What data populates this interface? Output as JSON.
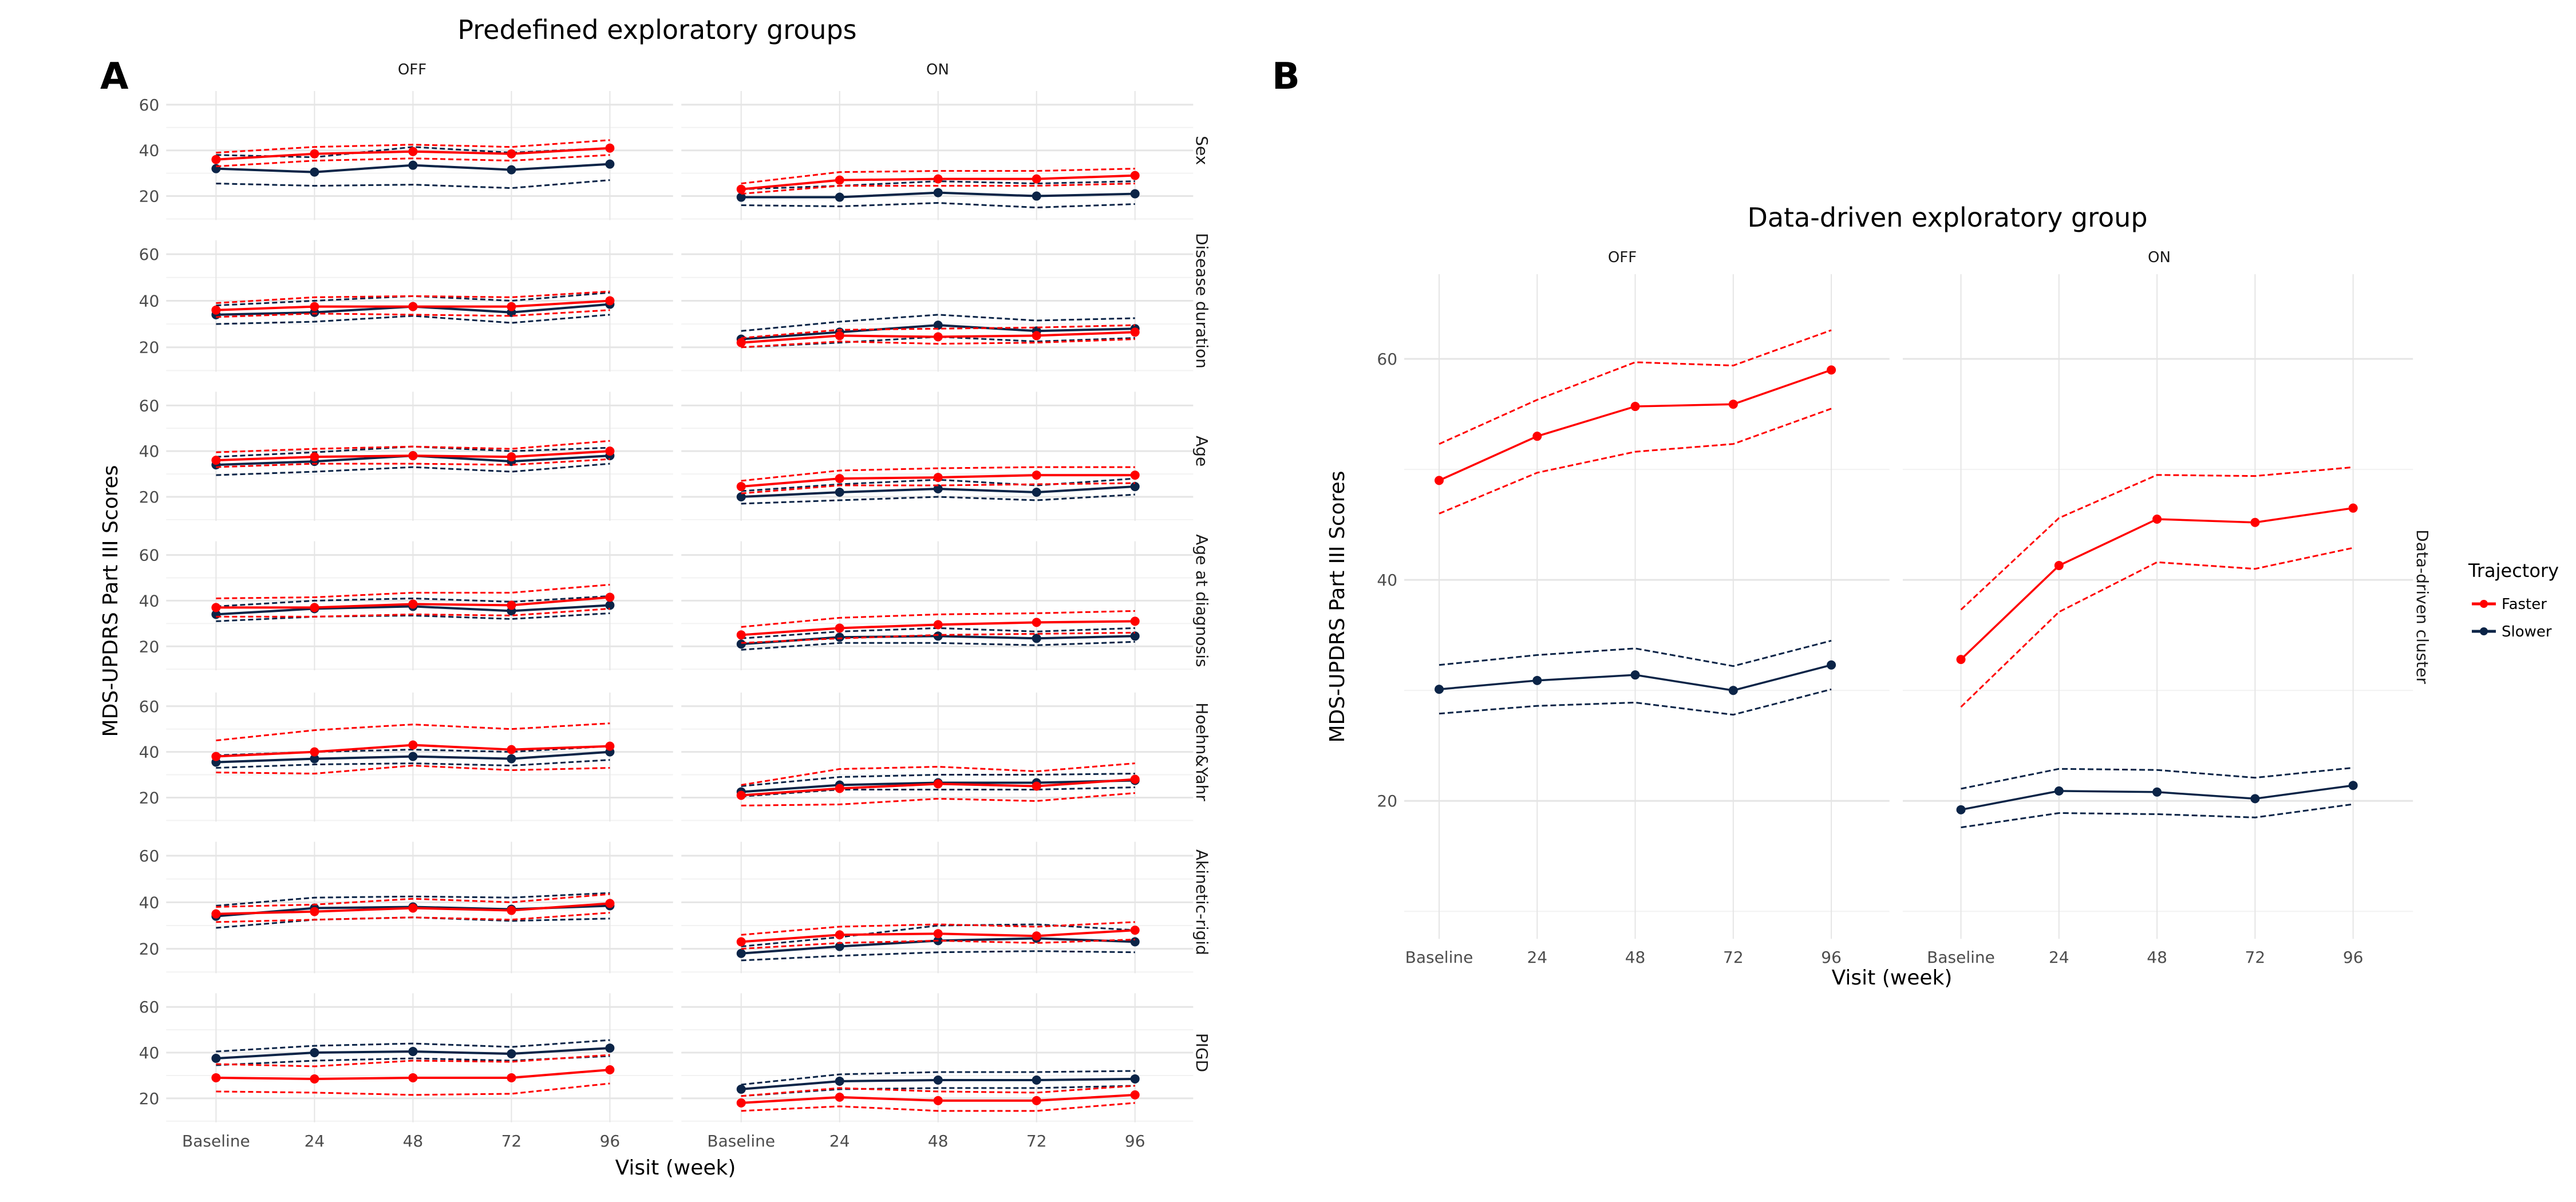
{
  "colors": {
    "faster": "#ff0000",
    "slower": "#0b2447",
    "grid_major": "#e5e5e5",
    "grid_minor": "#f2f2f2"
  },
  "panel_a": {
    "letter": "A",
    "title": "Predefined exploratory groups"
  },
  "panel_b": {
    "letter": "B",
    "title": "Data-driven exploratory group"
  },
  "legend": {
    "title": "Trajectory",
    "items": [
      {
        "label": "Faster",
        "key": "faster"
      },
      {
        "label": "Slower",
        "key": "slower"
      }
    ]
  },
  "chart_data": [
    {
      "type": "line",
      "id": "A",
      "title": "Predefined exploratory groups",
      "xlabel": "Visit (week)",
      "ylabel": "MDS-UPDRS Part III Scores",
      "x": [
        "Baseline",
        "24",
        "48",
        "72",
        "96"
      ],
      "yticks": [
        20,
        40,
        60
      ],
      "ylim": [
        7,
        66
      ],
      "columns": [
        "OFF",
        "ON"
      ],
      "rows": [
        {
          "label": "Sex",
          "OFF": {
            "faster": {
              "mean": [
                36,
                38.5,
                39.5,
                38.5,
                41
              ],
              "lower": [
                33,
                35.5,
                36.5,
                35.5,
                38
              ],
              "upper": [
                39,
                41.5,
                42.5,
                41.5,
                44.5
              ]
            },
            "slower": {
              "mean": [
                32,
                30.5,
                33.5,
                31.5,
                34
              ],
              "lower": [
                25.5,
                24.5,
                25,
                23.5,
                27
              ],
              "upper": [
                38,
                37,
                41.5,
                39,
                41
              ]
            }
          },
          "ON": {
            "faster": {
              "mean": [
                23,
                27,
                27.5,
                27.5,
                29
              ],
              "lower": [
                21,
                24.5,
                24.5,
                24.5,
                25.5
              ],
              "upper": [
                25.5,
                30.5,
                31,
                31,
                32
              ]
            },
            "slower": {
              "mean": [
                19.5,
                19.5,
                21.5,
                20,
                21
              ],
              "lower": [
                16,
                15.5,
                17,
                15,
                16.5
              ],
              "upper": [
                23,
                24.5,
                26.5,
                25.5,
                26.5
              ]
            }
          }
        },
        {
          "label": "Disease duration",
          "OFF": {
            "faster": {
              "mean": [
                36,
                37.5,
                37.5,
                37.5,
                40
              ],
              "lower": [
                33,
                34.5,
                34,
                33.5,
                36
              ],
              "upper": [
                39,
                41.5,
                42,
                41.5,
                44
              ]
            },
            "slower": {
              "mean": [
                34,
                35,
                37.5,
                35,
                38.5
              ],
              "lower": [
                30,
                31,
                33.5,
                30.5,
                34
              ],
              "upper": [
                38,
                40,
                42,
                40,
                43.5
              ]
            }
          },
          "ON": {
            "faster": {
              "mean": [
                22,
                25,
                24.5,
                25,
                26.5
              ],
              "lower": [
                20,
                22.5,
                21.5,
                22,
                23.5
              ],
              "upper": [
                24,
                27.5,
                28,
                28.5,
                29.5
              ]
            },
            "slower": {
              "mean": [
                23.5,
                26.5,
                29.5,
                27,
                28
              ],
              "lower": [
                20,
                22,
                24.5,
                22.5,
                24
              ],
              "upper": [
                27,
                31,
                34,
                31.5,
                32.5
              ]
            }
          }
        },
        {
          "label": "Age",
          "OFF": {
            "faster": {
              "mean": [
                36,
                37.5,
                38,
                37.5,
                40
              ],
              "lower": [
                33,
                34.5,
                34.5,
                34,
                36.5
              ],
              "upper": [
                39.5,
                41,
                42,
                41,
                44.5
              ]
            },
            "slower": {
              "mean": [
                34,
                35.5,
                38,
                35.5,
                38
              ],
              "lower": [
                29.5,
                31,
                33,
                31,
                34.5
              ],
              "upper": [
                37.5,
                39.5,
                42,
                40,
                41.5
              ]
            }
          },
          "ON": {
            "faster": {
              "mean": [
                24.5,
                28,
                28.5,
                29.5,
                29.5
              ],
              "lower": [
                21.5,
                25,
                25,
                25.5,
                26
              ],
              "upper": [
                27,
                31.5,
                32.5,
                33,
                33
              ]
            },
            "slower": {
              "mean": [
                20,
                22,
                23.5,
                22,
                24.5
              ],
              "lower": [
                17,
                18.5,
                20,
                18.5,
                21
              ],
              "upper": [
                22.5,
                25.5,
                27.5,
                25,
                28
              ]
            }
          }
        },
        {
          "label": "Age at diagnosis",
          "OFF": {
            "faster": {
              "mean": [
                37,
                37,
                38.5,
                38,
                41.5
              ],
              "lower": [
                33,
                33,
                34,
                33.5,
                36.5
              ],
              "upper": [
                41,
                41.5,
                43.5,
                43.5,
                47
              ]
            },
            "slower": {
              "mean": [
                34,
                36.5,
                37.5,
                35.5,
                38
              ],
              "lower": [
                31,
                33,
                33.5,
                32,
                34.5
              ],
              "upper": [
                37.5,
                40,
                41,
                39.5,
                42
              ]
            }
          },
          "ON": {
            "faster": {
              "mean": [
                25,
                28,
                29.5,
                30.5,
                31
              ],
              "lower": [
                21.5,
                23.5,
                25,
                25.5,
                26
              ],
              "upper": [
                28.5,
                32.5,
                34,
                34.5,
                35.5
              ]
            },
            "slower": {
              "mean": [
                21,
                24,
                24.5,
                23.5,
                24.5
              ],
              "lower": [
                18.5,
                21.5,
                21.5,
                20.5,
                22
              ],
              "upper": [
                23.5,
                26.5,
                28,
                26.5,
                28
              ]
            }
          }
        },
        {
          "label": "Hoehn&Yahr",
          "OFF": {
            "faster": {
              "mean": [
                38,
                40,
                43,
                41,
                42.5
              ],
              "lower": [
                31,
                30.5,
                34,
                32,
                33
              ],
              "upper": [
                45,
                49.5,
                52,
                50,
                52.5
              ]
            },
            "slower": {
              "mean": [
                35.5,
                37,
                38,
                37,
                40
              ],
              "lower": [
                33,
                34.5,
                35,
                34,
                36.5
              ],
              "upper": [
                38.5,
                40,
                41,
                40,
                42.5
              ]
            }
          },
          "ON": {
            "faster": {
              "mean": [
                21,
                24,
                26,
                25,
                28
              ],
              "lower": [
                16.5,
                17,
                19.5,
                18.5,
                22
              ],
              "upper": [
                25.5,
                32.5,
                33.5,
                31.5,
                35
              ]
            },
            "slower": {
              "mean": [
                22.5,
                25.5,
                26.5,
                26.5,
                27.5
              ],
              "lower": [
                20.5,
                23.5,
                23.5,
                23.5,
                24.5
              ],
              "upper": [
                25,
                29,
                30,
                30,
                30.5
              ]
            }
          }
        },
        {
          "label": "Akinetic-rigid",
          "OFF": {
            "faster": {
              "mean": [
                35,
                36,
                37.5,
                36.5,
                39.5
              ],
              "lower": [
                31.5,
                32.5,
                33.5,
                32.5,
                35.5
              ],
              "upper": [
                38,
                39,
                41.5,
                40,
                43.5
              ]
            },
            "slower": {
              "mean": [
                34,
                37.5,
                38,
                37,
                38.5
              ],
              "lower": [
                29,
                32.5,
                33.5,
                32,
                33
              ],
              "upper": [
                38.5,
                42,
                42.5,
                42,
                44
              ]
            }
          },
          "ON": {
            "faster": {
              "mean": [
                23,
                26,
                26.5,
                25.5,
                28
              ],
              "lower": [
                20,
                22.5,
                23.5,
                22.5,
                24
              ],
              "upper": [
                26,
                29.5,
                30.5,
                29.5,
                31.5
              ]
            },
            "slower": {
              "mean": [
                18,
                21,
                23.5,
                24.5,
                23
              ],
              "lower": [
                15,
                17,
                18.5,
                19,
                18.5
              ],
              "upper": [
                21,
                25,
                30,
                30.5,
                28
              ]
            }
          }
        },
        {
          "label": "PIGD",
          "OFF": {
            "faster": {
              "mean": [
                29,
                28.5,
                29,
                29,
                32.5
              ],
              "lower": [
                23,
                22.5,
                21.5,
                22,
                26.5
              ],
              "upper": [
                35,
                34,
                36.5,
                36,
                39
              ]
            },
            "slower": {
              "mean": [
                37.5,
                40,
                40.5,
                39.5,
                42
              ],
              "lower": [
                34.5,
                36.5,
                37.5,
                36.5,
                38.5
              ],
              "upper": [
                40.5,
                43,
                44,
                42.5,
                45.5
              ]
            }
          },
          "ON": {
            "faster": {
              "mean": [
                18,
                20.5,
                19,
                19,
                21.5
              ],
              "lower": [
                14.5,
                16.5,
                14.5,
                14.5,
                18
              ],
              "upper": [
                21,
                24.5,
                23,
                22.5,
                25.5
              ]
            },
            "slower": {
              "mean": [
                24,
                27.5,
                28,
                28,
                28.5
              ],
              "lower": [
                21,
                24,
                24.5,
                24.5,
                25.5
              ],
              "upper": [
                26,
                30.5,
                31.5,
                31.5,
                32
              ]
            }
          }
        }
      ]
    },
    {
      "type": "line",
      "id": "B",
      "title": "Data-driven exploratory group",
      "xlabel": "Visit (week)",
      "ylabel": "MDS-UPDRS Part III Scores",
      "row_label": "Data-driven cluster",
      "x": [
        "Baseline",
        "24",
        "48",
        "72",
        "96"
      ],
      "yticks": [
        20,
        40,
        60
      ],
      "ylim": [
        10,
        67.5
      ],
      "legend": {
        "title": "Trajectory",
        "entries": [
          "Faster",
          "Slower"
        ],
        "position": "right"
      },
      "columns": [
        "OFF",
        "ON"
      ],
      "panels": {
        "OFF": {
          "faster": {
            "mean": [
              49,
              53,
              55.7,
              55.9,
              59
            ],
            "lower": [
              46,
              49.7,
              51.6,
              52.3,
              55.5
            ],
            "upper": [
              52.3,
              56.3,
              59.7,
              59.4,
              62.6
            ]
          },
          "slower": {
            "mean": [
              30.1,
              30.9,
              31.4,
              30,
              32.3
            ],
            "lower": [
              27.9,
              28.6,
              28.9,
              27.8,
              30.1
            ],
            "upper": [
              32.3,
              33.2,
              33.8,
              32.2,
              34.5
            ]
          }
        },
        "ON": {
          "faster": {
            "mean": [
              32.8,
              41.3,
              45.5,
              45.2,
              46.5
            ],
            "lower": [
              28.5,
              37.1,
              41.6,
              41,
              42.9
            ],
            "upper": [
              37.3,
              45.6,
              49.5,
              49.4,
              50.2
            ]
          },
          "slower": {
            "mean": [
              19.2,
              20.9,
              20.8,
              20.2,
              21.4
            ],
            "lower": [
              17.6,
              18.9,
              18.8,
              18.5,
              19.7
            ],
            "upper": [
              21.1,
              22.9,
              22.8,
              22.1,
              23
            ]
          }
        }
      }
    }
  ]
}
